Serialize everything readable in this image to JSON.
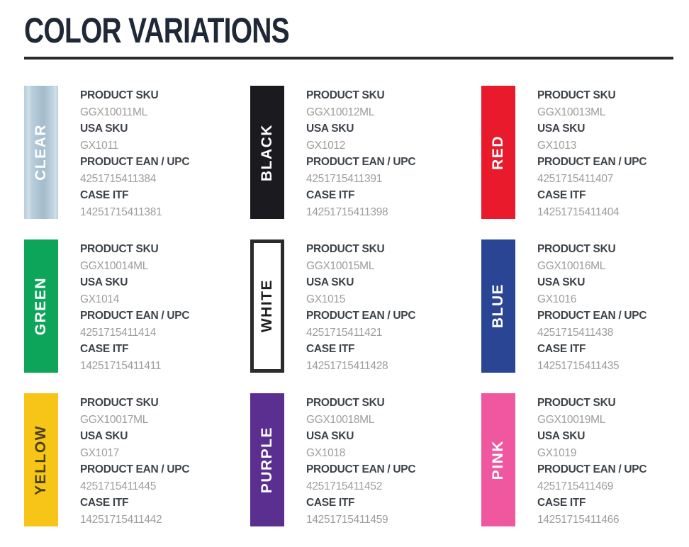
{
  "page": {
    "title": "COLOR VARIATIONS",
    "title_color": "#1f2836",
    "divider_color": "#2b2b2b",
    "background_color": "#ffffff"
  },
  "labels": {
    "product_sku": "PRODUCT SKU",
    "usa_sku": "USA SKU",
    "ean_upc": "PRODUCT EAN / UPC",
    "case_itf": "CASE ITF"
  },
  "variants": [
    {
      "name": "CLEAR",
      "swatch_color": "#aec6d6",
      "label_color": "#ffffff",
      "border_color": null,
      "product_sku": "GGX10011ML",
      "usa_sku": "GX1011",
      "ean_upc": "4251715411384",
      "case_itf": "14251715411381"
    },
    {
      "name": "BLACK",
      "swatch_color": "#1b1b1f",
      "label_color": "#ffffff",
      "border_color": null,
      "product_sku": "GGX10012ML",
      "usa_sku": "GX1012",
      "ean_upc": "4251715411391",
      "case_itf": "14251715411398"
    },
    {
      "name": "RED",
      "swatch_color": "#e81a2c",
      "label_color": "#ffffff",
      "border_color": null,
      "product_sku": "GGX10013ML",
      "usa_sku": "GX1013",
      "ean_upc": "4251715411407",
      "case_itf": "14251715411404"
    },
    {
      "name": "GREEN",
      "swatch_color": "#0da55a",
      "label_color": "#ffffff",
      "border_color": null,
      "product_sku": "GGX10014ML",
      "usa_sku": "GX1014",
      "ean_upc": "4251715411414",
      "case_itf": "14251715411411"
    },
    {
      "name": "WHITE",
      "swatch_color": "#ffffff",
      "label_color": "#1f1f1f",
      "border_color": "#2b2b2b",
      "product_sku": "GGX10015ML",
      "usa_sku": "GX1015",
      "ean_upc": "4251715411421",
      "case_itf": "14251715411428"
    },
    {
      "name": "BLUE",
      "swatch_color": "#2a4593",
      "label_color": "#ffffff",
      "border_color": null,
      "product_sku": "GGX10016ML",
      "usa_sku": "GX1016",
      "ean_upc": "4251715411438",
      "case_itf": "14251715411435"
    },
    {
      "name": "YELLOW",
      "swatch_color": "#f6c518",
      "label_color": "#4a4213",
      "border_color": null,
      "product_sku": "GGX10017ML",
      "usa_sku": "GX1017",
      "ean_upc": "4251715411445",
      "case_itf": "14251715411442"
    },
    {
      "name": "PURPLE",
      "swatch_color": "#5b2f90",
      "label_color": "#ffffff",
      "border_color": null,
      "product_sku": "GGX10018ML",
      "usa_sku": "GX1018",
      "ean_upc": "4251715411452",
      "case_itf": "14251715411459"
    },
    {
      "name": "PINK",
      "swatch_color": "#ef579e",
      "label_color": "#ffffff",
      "border_color": null,
      "product_sku": "GGX10019ML",
      "usa_sku": "GX1019",
      "ean_upc": "4251715411469",
      "case_itf": "14251715411466"
    }
  ]
}
